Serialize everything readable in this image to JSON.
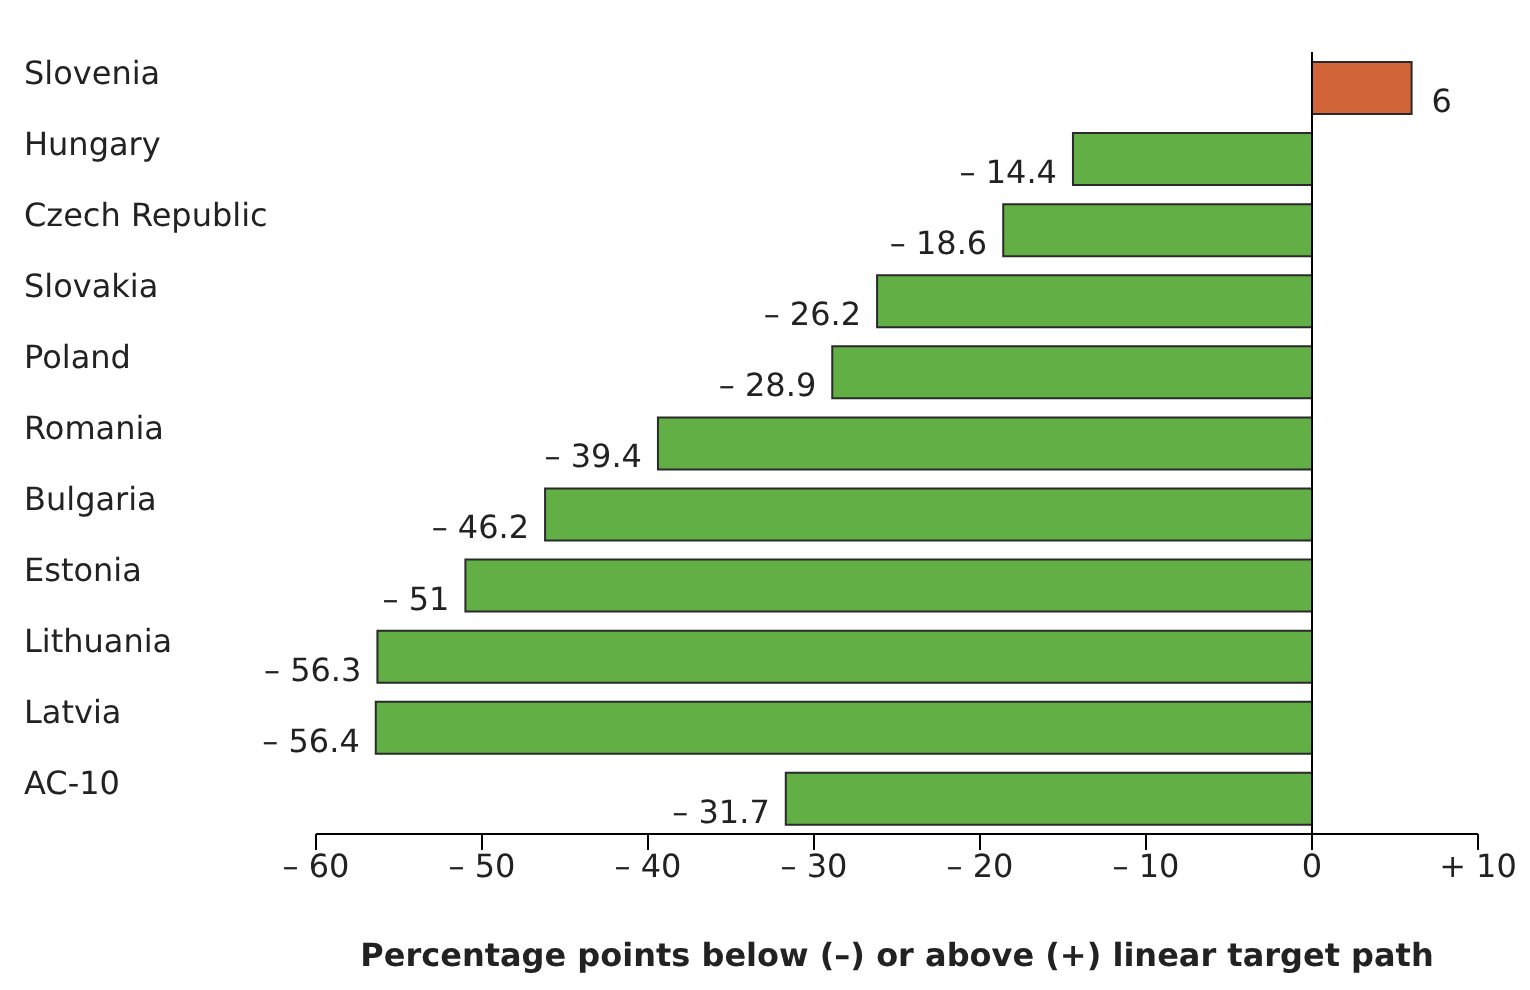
{
  "chart_data": {
    "type": "bar",
    "orientation": "horizontal",
    "xlabel": "Percentage points below (–) or above (+) linear target path",
    "categories": [
      "Slovenia",
      "Hungary",
      "Czech Republic",
      "Slovakia",
      "Poland",
      "Romania",
      "Bulgaria",
      "Estonia",
      "Lithuania",
      "Latvia",
      "AC-10"
    ],
    "values": [
      6,
      -14.4,
      -18.6,
      -26.2,
      -28.9,
      -39.4,
      -46.2,
      -51,
      -56.3,
      -56.4,
      -31.7
    ],
    "value_labels": [
      "6",
      "– 14.4",
      "– 18.6",
      "– 26.2",
      "– 28.9",
      "– 39.4",
      "– 46.2",
      "– 51",
      "– 56.3",
      "– 56.4",
      "– 31.7"
    ],
    "colors": [
      "#d2643a",
      "#62b045",
      "#62b045",
      "#62b045",
      "#62b045",
      "#62b045",
      "#62b045",
      "#62b045",
      "#62b045",
      "#62b045",
      "#62b045"
    ],
    "xlim": [
      -60,
      10
    ],
    "xticks": [
      {
        "value": -60,
        "label": "– 60"
      },
      {
        "value": -50,
        "label": "– 50"
      },
      {
        "value": -40,
        "label": "– 40"
      },
      {
        "value": -30,
        "label": "– 30"
      },
      {
        "value": -20,
        "label": "– 20"
      },
      {
        "value": -10,
        "label": "– 10"
      },
      0,
      {
        "value": 10,
        "label": "+ 10"
      }
    ],
    "ref_lines": [
      {
        "axis": "x",
        "value": 0,
        "color": "#000000"
      }
    ],
    "grid": false
  }
}
